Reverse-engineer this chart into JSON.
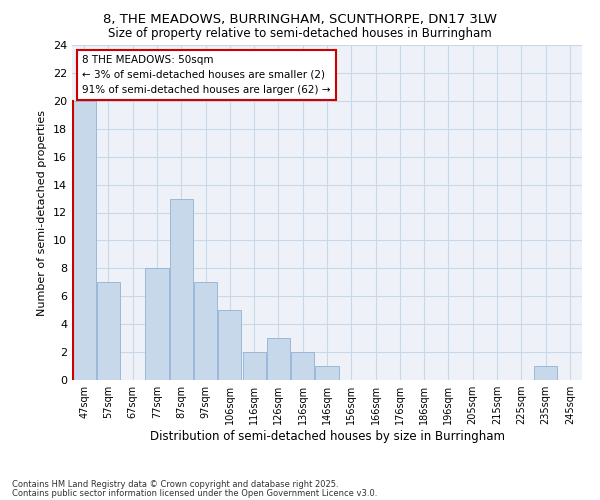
{
  "title1": "8, THE MEADOWS, BURRINGHAM, SCUNTHORPE, DN17 3LW",
  "title2": "Size of property relative to semi-detached houses in Burringham",
  "xlabel": "Distribution of semi-detached houses by size in Burringham",
  "ylabel": "Number of semi-detached properties",
  "categories": [
    "47sqm",
    "57sqm",
    "67sqm",
    "77sqm",
    "87sqm",
    "97sqm",
    "106sqm",
    "116sqm",
    "126sqm",
    "136sqm",
    "146sqm",
    "156sqm",
    "166sqm",
    "176sqm",
    "186sqm",
    "196sqm",
    "205sqm",
    "215sqm",
    "225sqm",
    "235sqm",
    "245sqm"
  ],
  "values": [
    20,
    7,
    0,
    8,
    13,
    7,
    5,
    2,
    3,
    2,
    1,
    0,
    0,
    0,
    0,
    0,
    0,
    0,
    0,
    1,
    0
  ],
  "bar_color": "#c8d8eb",
  "bar_edge_color": "#9ab8d8",
  "highlight_bar_index": 0,
  "highlight_left_edge_color": "#cc0000",
  "ylim": [
    0,
    24
  ],
  "yticks": [
    0,
    2,
    4,
    6,
    8,
    10,
    12,
    14,
    16,
    18,
    20,
    22,
    24
  ],
  "grid_color": "#c8d8eb",
  "annotation_text": "8 THE MEADOWS: 50sqm\n← 3% of semi-detached houses are smaller (2)\n91% of semi-detached houses are larger (62) →",
  "annotation_box_color": "#ffffff",
  "annotation_box_edge": "#cc0000",
  "footer1": "Contains HM Land Registry data © Crown copyright and database right 2025.",
  "footer2": "Contains public sector information licensed under the Open Government Licence v3.0.",
  "bg_color": "#ffffff",
  "plot_bg_color": "#eef2f8"
}
